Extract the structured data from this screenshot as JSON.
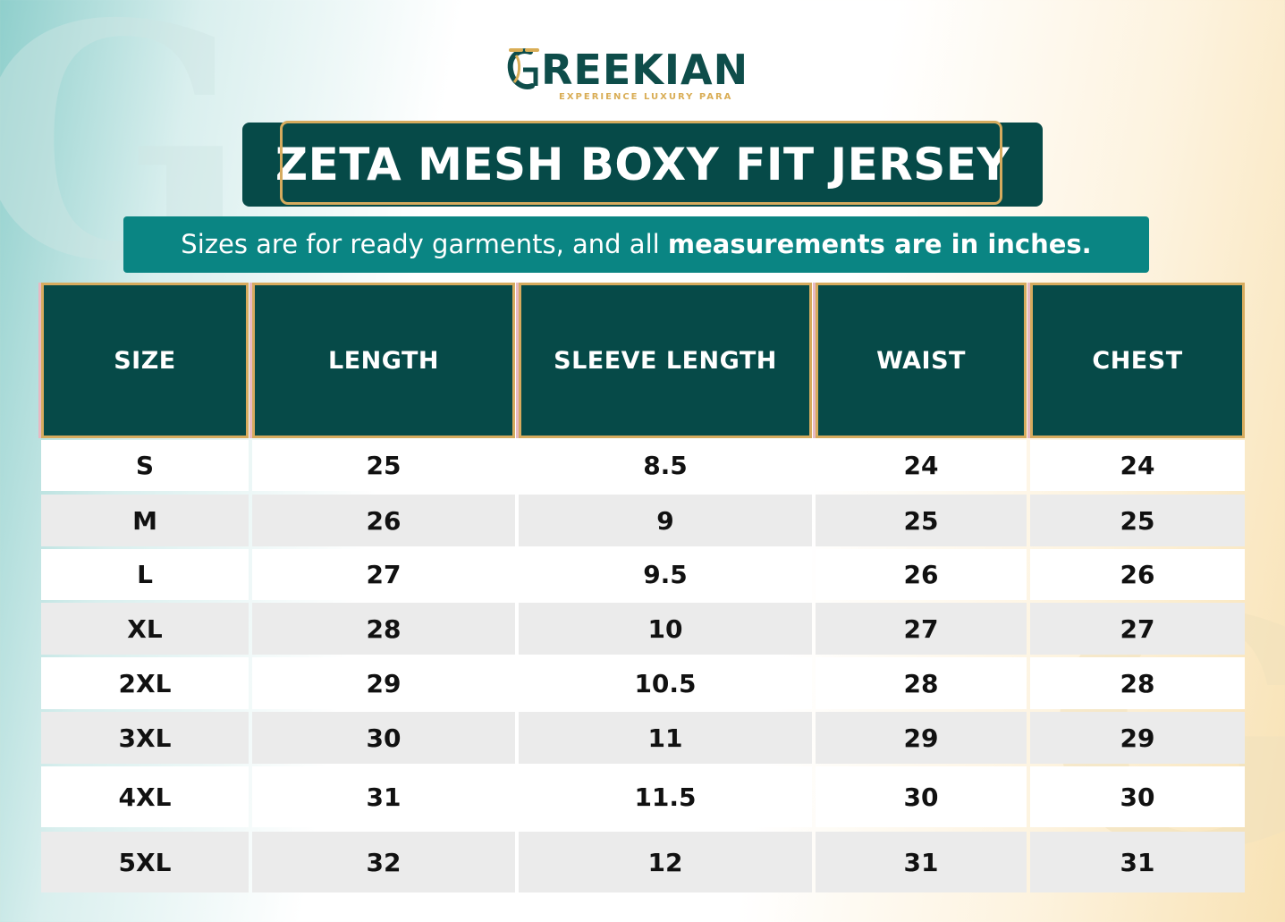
{
  "brand": {
    "name": "REEKIAN",
    "tagline": "EXPERIENCE LUXURY PARA",
    "logo_icon": "g-monogram-icon"
  },
  "title": "ZETA MESH BOXY FIT JERSEY",
  "subtitle": {
    "normal": "Sizes are for ready garments, and all ",
    "bold": "measurements are in inches."
  },
  "colors": {
    "header_bg": "#064a48",
    "subtitle_bg": "#0a8583",
    "gold": "#d6ab5e",
    "row_alt": "#ebebeb"
  },
  "table": {
    "headers": [
      "SIZE",
      "LENGTH",
      "SLEEVE LENGTH",
      "WAIST",
      "CHEST"
    ],
    "rows": [
      [
        "S",
        "25",
        "8.5",
        "24",
        "24"
      ],
      [
        "M",
        "26",
        "9",
        "25",
        "25"
      ],
      [
        "L",
        "27",
        "9.5",
        "26",
        "26"
      ],
      [
        "XL",
        "28",
        "10",
        "27",
        "27"
      ],
      [
        "2XL",
        "29",
        "10.5",
        "28",
        "28"
      ],
      [
        "3XL",
        "30",
        "11",
        "29",
        "29"
      ],
      [
        "4XL",
        "31",
        "11.5",
        "30",
        "30"
      ],
      [
        "5XL",
        "32",
        "12",
        "31",
        "31"
      ]
    ]
  }
}
